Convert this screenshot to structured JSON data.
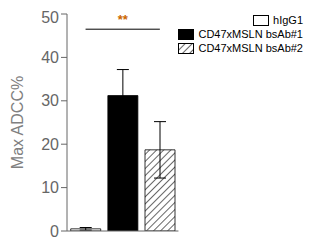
{
  "chart_data": {
    "type": "bar",
    "categories": [
      "hIgG1",
      "CD47xMSLN bsAb#1",
      "CD47xMSLN bsAb#2"
    ],
    "values": [
      0.5,
      31.2,
      18.7
    ],
    "errors": [
      0.3,
      6.0,
      6.5
    ],
    "colors": [
      "white",
      "black",
      "white"
    ],
    "ylabel": "Max ADCC%",
    "ylim": [
      0,
      50
    ],
    "yticks": [
      0,
      10,
      20,
      30,
      40,
      50
    ],
    "tick_labels": "y",
    "legend": "upper right",
    "annotations": [
      {
        "text": "**",
        "x": [
          "hIgG1",
          "CD47xMSLN bsAb#2"
        ],
        "y": 46.5,
        "color": "#cc6600"
      }
    ]
  }
}
